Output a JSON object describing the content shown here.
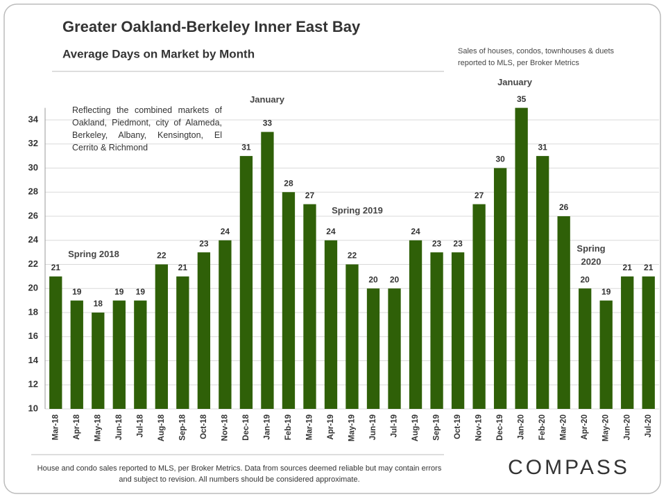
{
  "chart_data": {
    "type": "bar",
    "title": "Greater Oakland-Berkeley Inner East Bay",
    "subtitle": "Average Days on Market by Month",
    "source_note": "Sales of houses, condos, townhouses & duets reported to MLS, per Broker Metrics",
    "area_note": "Reflecting the combined markets of Oakland, Piedmont, city of Alameda, Berkeley, Albany, Kensington, El Cerrito & Richmond",
    "annotations": [
      "Spring 2018",
      "January",
      "Spring 2019",
      "January",
      "Spring 2020"
    ],
    "footer": "House and condo sales reported to MLS, per Broker Metrics. Data from sources deemed reliable but may contain errors and subject to revision. All numbers should be considered approximate.",
    "logo": "COMPASS",
    "categories": [
      "Mar-18",
      "Apr-18",
      "May-18",
      "Jun-18",
      "Jul-18",
      "Aug-18",
      "Sep-18",
      "Oct-18",
      "Nov-18",
      "Dec-18",
      "Jan-19",
      "Feb-19",
      "Mar-19",
      "Apr-19",
      "May-19",
      "Jun-19",
      "Jul-19",
      "Aug-19",
      "Sep-19",
      "Oct-19",
      "Nov-19",
      "Dec-19",
      "Jan-20",
      "Feb-20",
      "Mar-20",
      "Apr-20",
      "May-20",
      "Jun-20",
      "Jul-20"
    ],
    "values": [
      21,
      19,
      18,
      19,
      19,
      22,
      21,
      23,
      24,
      31,
      33,
      28,
      27,
      24,
      22,
      20,
      20,
      24,
      23,
      23,
      27,
      30,
      35,
      31,
      26,
      20,
      19,
      21,
      21
    ],
    "color": "#2f6008",
    "ylim": [
      10,
      35
    ],
    "yticks": [
      10,
      12,
      14,
      16,
      18,
      20,
      22,
      24,
      26,
      28,
      30,
      32,
      34
    ],
    "grid": true
  }
}
